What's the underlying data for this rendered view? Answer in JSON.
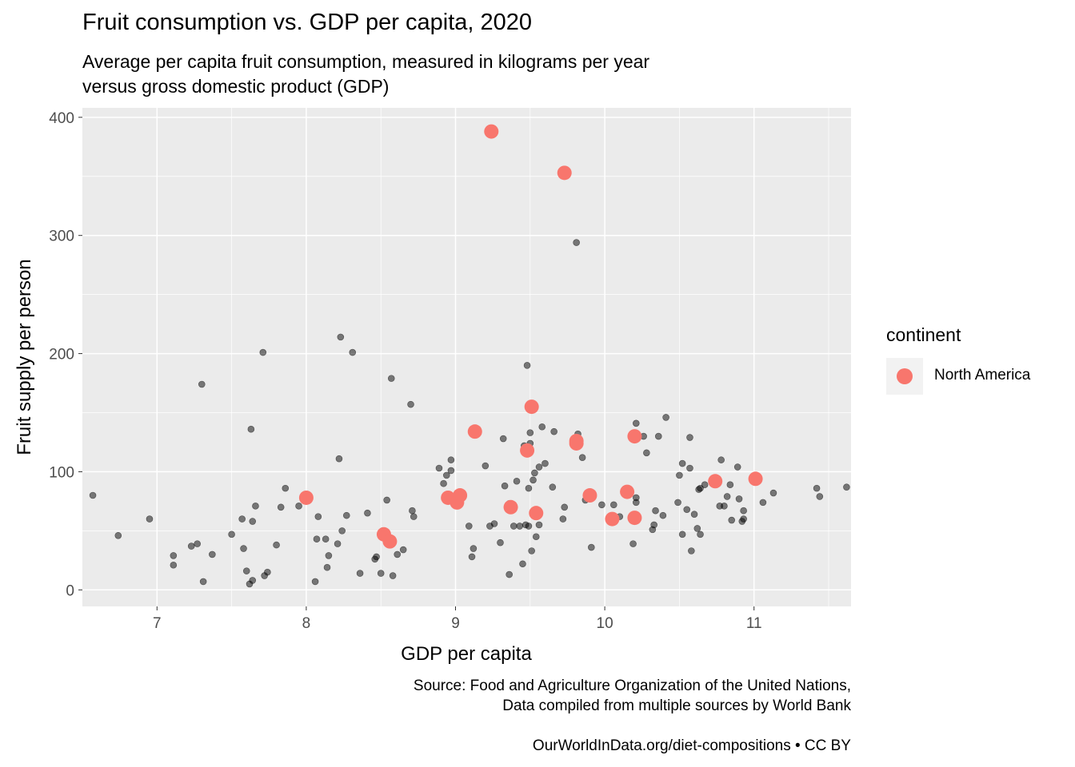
{
  "figure": {
    "title": "Fruit consumption vs. GDP per capita, 2020",
    "subtitle_lines": [
      "Average per capita fruit consumption, measured in kilograms per year",
      "versus gross domestic product (GDP)"
    ],
    "caption": {
      "source_lines": [
        "Source: Food and Agriculture Organization of the United Nations,",
        "Data compiled from multiple sources by World Bank"
      ],
      "credit": "OurWorldInData.org/diet-compositions • CC BY"
    },
    "legend": {
      "title": "continent",
      "entry_label": "North America",
      "entry_color": "#F8766D"
    }
  },
  "chart_data": {
    "type": "scatter",
    "title": "Fruit consumption vs. GDP per capita, 2020",
    "subtitle": "Average per capita fruit consumption, measured in kilograms per year versus gross domestic product (GDP)",
    "xlabel": "GDP per capita",
    "ylabel": "Fruit supply per person",
    "xlim": [
      6.5,
      11.65
    ],
    "ylim": [
      -14,
      408
    ],
    "x_ticks": [
      7,
      8,
      9,
      10,
      11
    ],
    "y_ticks": [
      0,
      100,
      200,
      300,
      400
    ],
    "grid": true,
    "panel_background": "#EBEBEB",
    "legend_position": "right",
    "series": [
      {
        "color": "#000000",
        "opacity": 0.5,
        "points": [
          [
            6.57,
            80
          ],
          [
            6.74,
            46
          ],
          [
            6.95,
            60
          ],
          [
            7.11,
            21
          ],
          [
            7.11,
            29
          ],
          [
            7.23,
            37
          ],
          [
            7.27,
            39
          ],
          [
            7.3,
            174
          ],
          [
            7.31,
            7
          ],
          [
            7.37,
            30
          ],
          [
            7.5,
            47
          ],
          [
            7.57,
            60
          ],
          [
            7.58,
            35
          ],
          [
            7.6,
            16
          ],
          [
            7.62,
            5
          ],
          [
            7.63,
            136
          ],
          [
            7.64,
            8
          ],
          [
            7.64,
            58
          ],
          [
            7.66,
            71
          ],
          [
            7.71,
            201
          ],
          [
            7.72,
            12
          ],
          [
            7.74,
            15
          ],
          [
            7.8,
            38
          ],
          [
            7.83,
            70
          ],
          [
            7.86,
            86
          ],
          [
            7.95,
            71
          ],
          [
            8.06,
            7
          ],
          [
            8.07,
            43
          ],
          [
            8.08,
            62
          ],
          [
            8.13,
            43
          ],
          [
            8.14,
            19
          ],
          [
            8.15,
            29
          ],
          [
            8.21,
            39
          ],
          [
            8.22,
            111
          ],
          [
            8.23,
            214
          ],
          [
            8.24,
            50
          ],
          [
            8.27,
            63
          ],
          [
            8.31,
            201
          ],
          [
            8.36,
            14
          ],
          [
            8.41,
            65
          ],
          [
            8.46,
            26
          ],
          [
            8.47,
            28
          ],
          [
            8.5,
            14
          ],
          [
            8.51,
            50
          ],
          [
            8.54,
            76
          ],
          [
            8.55,
            41
          ],
          [
            8.57,
            179
          ],
          [
            8.58,
            12
          ],
          [
            8.61,
            30
          ],
          [
            8.65,
            34
          ],
          [
            8.7,
            157
          ],
          [
            8.71,
            67
          ],
          [
            8.72,
            62
          ],
          [
            8.89,
            103
          ],
          [
            8.92,
            90
          ],
          [
            8.94,
            97
          ],
          [
            8.95,
            80
          ],
          [
            8.97,
            110
          ],
          [
            8.97,
            101
          ],
          [
            9.09,
            54
          ],
          [
            9.11,
            28
          ],
          [
            9.12,
            35
          ],
          [
            9.2,
            105
          ],
          [
            9.23,
            54
          ],
          [
            9.26,
            56
          ],
          [
            9.3,
            40
          ],
          [
            9.32,
            128
          ],
          [
            9.33,
            88
          ],
          [
            9.36,
            13
          ],
          [
            9.36,
            73
          ],
          [
            9.39,
            54
          ],
          [
            9.41,
            92
          ],
          [
            9.43,
            54
          ],
          [
            9.45,
            22
          ],
          [
            9.46,
            122
          ],
          [
            9.47,
            55
          ],
          [
            9.48,
            190
          ],
          [
            9.49,
            86
          ],
          [
            9.49,
            54
          ],
          [
            9.5,
            124
          ],
          [
            9.5,
            133
          ],
          [
            9.51,
            33
          ],
          [
            9.52,
            93
          ],
          [
            9.53,
            99
          ],
          [
            9.54,
            45
          ],
          [
            9.56,
            104
          ],
          [
            9.56,
            55
          ],
          [
            9.58,
            138
          ],
          [
            9.6,
            107
          ],
          [
            9.65,
            87
          ],
          [
            9.66,
            134
          ],
          [
            9.72,
            60
          ],
          [
            9.73,
            70
          ],
          [
            9.81,
            294
          ],
          [
            9.82,
            132
          ],
          [
            9.82,
            124
          ],
          [
            9.85,
            112
          ],
          [
            9.87,
            76
          ],
          [
            9.91,
            36
          ],
          [
            9.98,
            72
          ],
          [
            10.06,
            72
          ],
          [
            10.1,
            62
          ],
          [
            10.19,
            39
          ],
          [
            10.21,
            74
          ],
          [
            10.21,
            78
          ],
          [
            10.21,
            141
          ],
          [
            10.26,
            130
          ],
          [
            10.28,
            116
          ],
          [
            10.32,
            51
          ],
          [
            10.33,
            55
          ],
          [
            10.34,
            67
          ],
          [
            10.36,
            130
          ],
          [
            10.39,
            63
          ],
          [
            10.41,
            146
          ],
          [
            10.49,
            74
          ],
          [
            10.5,
            97
          ],
          [
            10.52,
            107
          ],
          [
            10.52,
            47
          ],
          [
            10.55,
            68
          ],
          [
            10.57,
            103
          ],
          [
            10.57,
            129
          ],
          [
            10.58,
            33
          ],
          [
            10.6,
            64
          ],
          [
            10.62,
            52
          ],
          [
            10.63,
            85
          ],
          [
            10.64,
            47
          ],
          [
            10.64,
            86
          ],
          [
            10.67,
            89
          ],
          [
            10.73,
            94
          ],
          [
            10.77,
            71
          ],
          [
            10.78,
            110
          ],
          [
            10.8,
            71
          ],
          [
            10.82,
            79
          ],
          [
            10.84,
            89
          ],
          [
            10.85,
            59
          ],
          [
            10.89,
            104
          ],
          [
            10.9,
            77
          ],
          [
            10.92,
            58
          ],
          [
            10.93,
            60
          ],
          [
            10.93,
            67
          ],
          [
            11.06,
            74
          ],
          [
            11.13,
            82
          ],
          [
            11.42,
            86
          ],
          [
            11.44,
            79
          ],
          [
            11.62,
            87
          ]
        ]
      },
      {
        "name": "North America",
        "color": "#F8766D",
        "points": [
          [
            8,
            78
          ],
          [
            8.52,
            47
          ],
          [
            8.56,
            41
          ],
          [
            8.95,
            78
          ],
          [
            9.01,
            74
          ],
          [
            9.03,
            80
          ],
          [
            9.13,
            134
          ],
          [
            9.24,
            388
          ],
          [
            9.37,
            70
          ],
          [
            9.48,
            118
          ],
          [
            9.51,
            155
          ],
          [
            9.54,
            65
          ],
          [
            9.73,
            353
          ],
          [
            9.81,
            126
          ],
          [
            9.81,
            124
          ],
          [
            9.9,
            80
          ],
          [
            10.05,
            60
          ],
          [
            10.15,
            83
          ],
          [
            10.2,
            61
          ],
          [
            10.2,
            130
          ],
          [
            10.74,
            92
          ],
          [
            11.01,
            94
          ]
        ]
      }
    ]
  }
}
